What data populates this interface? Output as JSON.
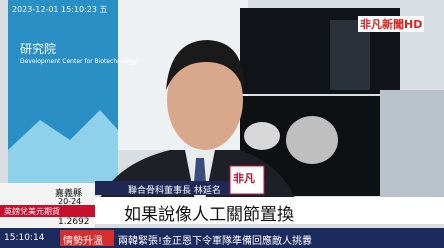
{
  "overlay": {
    "timestamp": "2023-12-01 15:10:23 五",
    "logo": "非凡新聞HD"
  },
  "background": {
    "sign_title": "研究院",
    "sign_subtitle": "Development Center for Biotechnology"
  },
  "lower_third": {
    "speaker": "聯合骨科董事長 林延名",
    "channel_tag": "非凡",
    "caption": "如果說像人工關節置換"
  },
  "sidebar": {
    "city": "嘉義縣",
    "temperature": "20-24",
    "market_name": "英鎊兌美元期貨",
    "market_value": "1.2692",
    "time": "15:10:14"
  },
  "ticker": {
    "label": "情勢升溫",
    "text": "兩韓緊張!金正恩下令軍隊準備回應敵人挑釁"
  }
}
